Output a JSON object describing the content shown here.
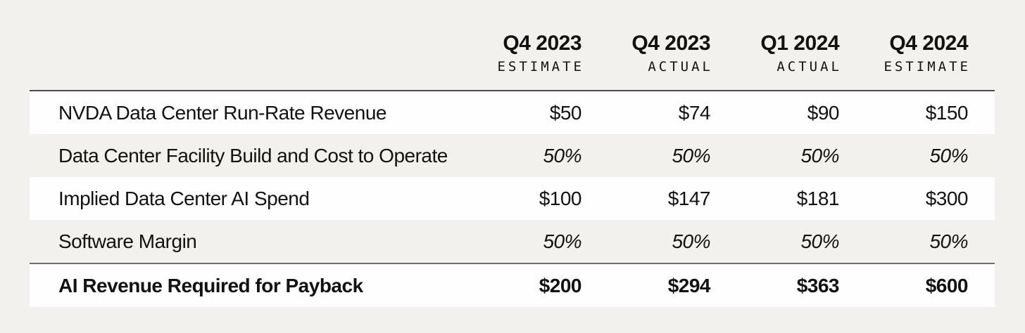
{
  "colors": {
    "page_background": "#f2f1ee",
    "row_stripe": "#fefefe",
    "text": "#121212",
    "header_rule": "#4c4c4c",
    "emphasis_rule": "#716d69"
  },
  "chart_data": {
    "type": "table",
    "title": "",
    "columns": [
      {
        "period": "Q4 2023",
        "type": "ESTIMATE"
      },
      {
        "period": "Q4 2023",
        "type": "ACTUAL"
      },
      {
        "period": "Q1 2024",
        "type": "ACTUAL"
      },
      {
        "period": "Q4 2024",
        "type": "ESTIMATE"
      }
    ],
    "rows": [
      {
        "label": "NVDA Data Center Run-Rate Revenue",
        "values": [
          "$50",
          "$74",
          "$90",
          "$150"
        ],
        "style": "regular"
      },
      {
        "label": "Data Center Facility Build and Cost to Operate",
        "values": [
          "50%",
          "50%",
          "50%",
          "50%"
        ],
        "style": "italic"
      },
      {
        "label": "Implied Data Center AI Spend",
        "values": [
          "$100",
          "$147",
          "$181",
          "$300"
        ],
        "style": "regular"
      },
      {
        "label": "Software Margin",
        "values": [
          "50%",
          "50%",
          "50%",
          "50%"
        ],
        "style": "italic"
      },
      {
        "label": "AI Revenue Required for Payback",
        "values": [
          "$200",
          "$294",
          "$363",
          "$600"
        ],
        "style": "bold"
      }
    ]
  }
}
